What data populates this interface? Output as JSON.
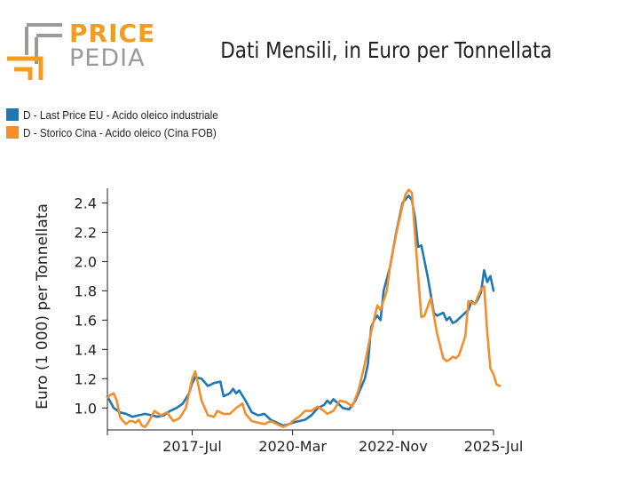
{
  "logo": {
    "word_top": "PRICE",
    "word_bottom": "PEDIA",
    "color_primary": "#f39c1f",
    "color_secondary": "#9a9a9a"
  },
  "chart_data": {
    "type": "line",
    "title": "Dati Mensili, in Euro per Tonnellata",
    "xlabel": "",
    "ylabel": "Euro (1 000) per Tonnellata",
    "xlim": [
      "2015-04",
      "2025-07"
    ],
    "ylim": [
      0.85,
      2.5
    ],
    "x_ticks": [
      "2017-Jul",
      "2020-Mar",
      "2022-Nov",
      "2025-Jul"
    ],
    "y_ticks": [
      "1.0",
      "1.2",
      "1.4",
      "1.6",
      "1.8",
      "2.0",
      "2.2",
      "2.4"
    ],
    "grid": false,
    "legend_position": "top-left",
    "series": [
      {
        "name": "D - Last Price EU - Acido oleico industriale",
        "color": "#1f77b4",
        "points": [
          [
            "2015-04",
            1.08
          ],
          [
            "2015-06",
            1.0
          ],
          [
            "2015-08",
            0.97
          ],
          [
            "2015-10",
            0.96
          ],
          [
            "2015-12",
            0.94
          ],
          [
            "2016-02",
            0.95
          ],
          [
            "2016-04",
            0.96
          ],
          [
            "2016-06",
            0.95
          ],
          [
            "2016-08",
            0.94
          ],
          [
            "2016-10",
            0.95
          ],
          [
            "2016-12",
            0.98
          ],
          [
            "2017-02",
            1.0
          ],
          [
            "2017-04",
            1.03
          ],
          [
            "2017-06",
            1.1
          ],
          [
            "2017-07",
            1.17
          ],
          [
            "2017-08",
            1.21
          ],
          [
            "2017-10",
            1.2
          ],
          [
            "2017-12",
            1.15
          ],
          [
            "2018-02",
            1.17
          ],
          [
            "2018-04",
            1.18
          ],
          [
            "2018-05",
            1.08
          ],
          [
            "2018-07",
            1.1
          ],
          [
            "2018-08",
            1.13
          ],
          [
            "2018-09",
            1.1
          ],
          [
            "2018-10",
            1.12
          ],
          [
            "2018-12",
            1.05
          ],
          [
            "2019-02",
            0.97
          ],
          [
            "2019-04",
            0.95
          ],
          [
            "2019-06",
            0.96
          ],
          [
            "2019-08",
            0.92
          ],
          [
            "2019-10",
            0.9
          ],
          [
            "2019-12",
            0.88
          ],
          [
            "2020-02",
            0.89
          ],
          [
            "2020-03",
            0.9
          ],
          [
            "2020-05",
            0.91
          ],
          [
            "2020-07",
            0.92
          ],
          [
            "2020-09",
            0.95
          ],
          [
            "2020-11",
            1.0
          ],
          [
            "2021-01",
            1.02
          ],
          [
            "2021-02",
            1.05
          ],
          [
            "2021-03",
            1.03
          ],
          [
            "2021-04",
            1.06
          ],
          [
            "2021-05",
            1.04
          ],
          [
            "2021-07",
            1.0
          ],
          [
            "2021-09",
            0.99
          ],
          [
            "2021-11",
            1.05
          ],
          [
            "2022-01",
            1.15
          ],
          [
            "2022-02",
            1.2
          ],
          [
            "2022-03",
            1.3
          ],
          [
            "2022-04",
            1.55
          ],
          [
            "2022-05",
            1.6
          ],
          [
            "2022-06",
            1.63
          ],
          [
            "2022-07",
            1.6
          ],
          [
            "2022-08",
            1.8
          ],
          [
            "2022-10",
            1.96
          ],
          [
            "2022-12",
            2.2
          ],
          [
            "2023-02",
            2.4
          ],
          [
            "2023-04",
            2.45
          ],
          [
            "2023-05",
            2.42
          ],
          [
            "2023-06",
            2.3
          ],
          [
            "2023-07",
            2.1
          ],
          [
            "2023-08",
            2.11
          ],
          [
            "2023-10",
            1.9
          ],
          [
            "2023-12",
            1.65
          ],
          [
            "2024-01",
            1.63
          ],
          [
            "2024-03",
            1.65
          ],
          [
            "2024-04",
            1.6
          ],
          [
            "2024-05",
            1.62
          ],
          [
            "2024-06",
            1.58
          ],
          [
            "2024-07",
            1.59
          ],
          [
            "2024-09",
            1.63
          ],
          [
            "2024-10",
            1.65
          ],
          [
            "2024-11",
            1.67
          ],
          [
            "2024-12",
            1.73
          ],
          [
            "2025-01",
            1.71
          ],
          [
            "2025-02",
            1.74
          ],
          [
            "2025-03",
            1.79
          ],
          [
            "2025-04",
            1.94
          ],
          [
            "2025-05",
            1.86
          ],
          [
            "2025-06",
            1.9
          ],
          [
            "2025-07",
            1.8
          ]
        ]
      },
      {
        "name": "D - Storico Cina - Acido oleico (Cina FOB)",
        "color": "#f28e2b",
        "points": [
          [
            "2015-04",
            1.07
          ],
          [
            "2015-05",
            1.09
          ],
          [
            "2015-06",
            1.1
          ],
          [
            "2015-07",
            1.05
          ],
          [
            "2015-08",
            0.94
          ],
          [
            "2015-09",
            0.91
          ],
          [
            "2015-10",
            0.89
          ],
          [
            "2015-11",
            0.91
          ],
          [
            "2015-12",
            0.91
          ],
          [
            "2016-01",
            0.9
          ],
          [
            "2016-02",
            0.92
          ],
          [
            "2016-03",
            0.88
          ],
          [
            "2016-04",
            0.87
          ],
          [
            "2016-05",
            0.9
          ],
          [
            "2016-07",
            0.98
          ],
          [
            "2016-09",
            0.95
          ],
          [
            "2016-11",
            0.97
          ],
          [
            "2017-01",
            0.91
          ],
          [
            "2017-03",
            0.93
          ],
          [
            "2017-05",
            1.0
          ],
          [
            "2017-06",
            1.1
          ],
          [
            "2017-07",
            1.2
          ],
          [
            "2017-08",
            1.25
          ],
          [
            "2017-09",
            1.15
          ],
          [
            "2017-10",
            1.05
          ],
          [
            "2017-12",
            0.95
          ],
          [
            "2018-02",
            0.94
          ],
          [
            "2018-03",
            0.98
          ],
          [
            "2018-05",
            0.96
          ],
          [
            "2018-07",
            0.96
          ],
          [
            "2018-09",
            1.0
          ],
          [
            "2018-11",
            1.03
          ],
          [
            "2018-12",
            0.96
          ],
          [
            "2019-02",
            0.91
          ],
          [
            "2019-04",
            0.9
          ],
          [
            "2019-06",
            0.89
          ],
          [
            "2019-08",
            0.91
          ],
          [
            "2019-10",
            0.89
          ],
          [
            "2019-12",
            0.87
          ],
          [
            "2020-02",
            0.89
          ],
          [
            "2020-03",
            0.91
          ],
          [
            "2020-05",
            0.94
          ],
          [
            "2020-07",
            0.98
          ],
          [
            "2020-09",
            0.98
          ],
          [
            "2020-11",
            1.01
          ],
          [
            "2021-01",
            0.98
          ],
          [
            "2021-02",
            0.96
          ],
          [
            "2021-04",
            0.98
          ],
          [
            "2021-06",
            1.05
          ],
          [
            "2021-08",
            1.04
          ],
          [
            "2021-10",
            1.01
          ],
          [
            "2021-12",
            1.12
          ],
          [
            "2022-02",
            1.3
          ],
          [
            "2022-04",
            1.52
          ],
          [
            "2022-06",
            1.7
          ],
          [
            "2022-07",
            1.67
          ],
          [
            "2022-09",
            1.8
          ],
          [
            "2022-10",
            1.96
          ],
          [
            "2022-12",
            2.19
          ],
          [
            "2023-02",
            2.38
          ],
          [
            "2023-03",
            2.46
          ],
          [
            "2023-04",
            2.49
          ],
          [
            "2023-05",
            2.47
          ],
          [
            "2023-07",
            1.9
          ],
          [
            "2023-08",
            1.62
          ],
          [
            "2023-09",
            1.63
          ],
          [
            "2023-11",
            1.75
          ],
          [
            "2024-01",
            1.51
          ],
          [
            "2024-03",
            1.34
          ],
          [
            "2024-04",
            1.32
          ],
          [
            "2024-05",
            1.33
          ],
          [
            "2024-06",
            1.35
          ],
          [
            "2024-07",
            1.34
          ],
          [
            "2024-08",
            1.36
          ],
          [
            "2024-10",
            1.49
          ],
          [
            "2024-11",
            1.73
          ],
          [
            "2025-01",
            1.71
          ],
          [
            "2025-03",
            1.81
          ],
          [
            "2025-04",
            1.83
          ],
          [
            "2025-05",
            1.52
          ],
          [
            "2025-06",
            1.27
          ],
          [
            "2025-07",
            1.23
          ],
          [
            "2025-08",
            1.16
          ],
          [
            "2025-09",
            1.15
          ]
        ]
      }
    ]
  }
}
